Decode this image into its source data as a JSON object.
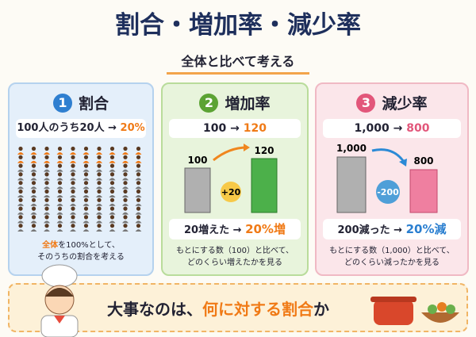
{
  "header": {
    "title": "割合・増加率・減少率",
    "subtitle": "全体と比べて考える"
  },
  "panels": [
    {
      "number": "1",
      "heading": "割合",
      "example": {
        "text": "100人のうち20人 →",
        "rate": "20%"
      },
      "caption": {
        "highlight": "全体",
        "rest": "を100%として、",
        "line2": "そのうちの割合を考える"
      }
    },
    {
      "number": "2",
      "heading": "増加率",
      "example": {
        "from": "100 →",
        "to": "120"
      },
      "bars": {
        "before": "100",
        "after": "120",
        "change": "+20"
      },
      "result": {
        "text": "20増えた →",
        "rate": "20%増"
      },
      "caption": [
        "もとにする数（100）と比べて、",
        "どのくらい増えたかを見る"
      ]
    },
    {
      "number": "3",
      "heading": "減少率",
      "example": {
        "from": "1,000 →",
        "to": "800"
      },
      "bars": {
        "before": "1,000",
        "after": "800",
        "change": "-200"
      },
      "result": {
        "text": "200減った →",
        "rate": "20%減"
      },
      "caption": [
        "もとにする数（1,000）と比べて、",
        "どのくらい減ったかを見る"
      ]
    }
  ],
  "footer": {
    "pre": "大事なのは、",
    "highlight": "何に対する割合",
    "post": "か"
  }
}
